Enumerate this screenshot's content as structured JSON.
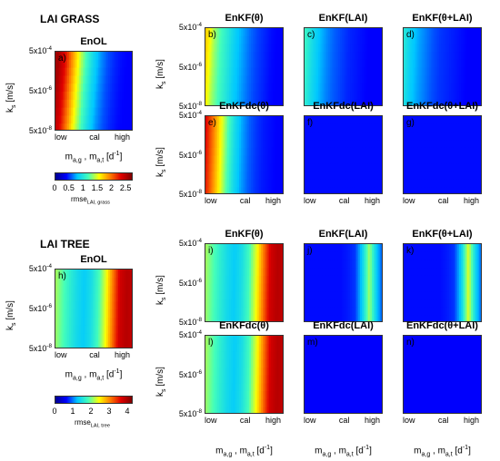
{
  "colormap_stops": [
    "#00008f",
    "#0000ff",
    "#00c8ff",
    "#45ffb9",
    "#ffff00",
    "#ff8000",
    "#e00000",
    "#800000"
  ],
  "sections": {
    "grass": "LAI GRASS",
    "tree": "LAI TREE"
  },
  "axes": {
    "y_label": "k",
    "y_label_sub": "s",
    "y_label_unit": " [m/s]",
    "y_ticks": [
      {
        "base": "5x10",
        "exp": "-4"
      },
      {
        "base": "5x10",
        "exp": "-6"
      },
      {
        "base": "5x10",
        "exp": "-8"
      }
    ],
    "x_ticks": [
      "low",
      "cal",
      "high"
    ],
    "x_label_main": "m",
    "x_label_sub1": "a,g",
    "x_label_mid": " , m",
    "x_label_sub2": "a,t",
    "x_label_unit": " [d",
    "x_label_unit_exp": "-1",
    "x_label_close": "]"
  },
  "colorbars": {
    "grass": {
      "ticks": [
        "0",
        "0.5",
        "1",
        "1.5",
        "2",
        "2.5"
      ],
      "label": "rmse",
      "label_sub": "LAI, grass"
    },
    "tree": {
      "ticks": [
        "0",
        "1",
        "2",
        "3",
        "4"
      ],
      "label": "rmse",
      "label_sub": "LAI, tree"
    }
  },
  "chart_data": [
    {
      "type": "heatmap",
      "panel": "a)",
      "title": "EnOL",
      "section": "LAI GRASS",
      "profile": [
        0.95,
        0.85,
        0.7,
        0.55,
        0.42,
        0.32,
        0.25,
        0.2,
        0.17,
        0.15,
        0.14,
        0.14
      ],
      "tilt": 0.08
    },
    {
      "type": "heatmap",
      "panel": "b)",
      "title": "EnKF(θ)",
      "section": "LAI GRASS",
      "profile": [
        0.62,
        0.5,
        0.42,
        0.36,
        0.3,
        0.26,
        0.22,
        0.19,
        0.17,
        0.15,
        0.14,
        0.14
      ],
      "tilt": 0.05
    },
    {
      "type": "heatmap",
      "panel": "c)",
      "title": "EnKF(LAI)",
      "section": "LAI GRASS",
      "profile": [
        0.4,
        0.33,
        0.28,
        0.24,
        0.21,
        0.19,
        0.17,
        0.16,
        0.15,
        0.14,
        0.14,
        0.14
      ],
      "tilt": 0.04
    },
    {
      "type": "heatmap",
      "panel": "d)",
      "title": "EnKF(θ+LAI)",
      "section": "LAI GRASS",
      "profile": [
        0.36,
        0.3,
        0.26,
        0.23,
        0.2,
        0.18,
        0.17,
        0.16,
        0.15,
        0.14,
        0.14,
        0.14
      ],
      "tilt": 0.04
    },
    {
      "type": "heatmap",
      "panel": "e)",
      "title": "EnKFdc(θ)",
      "section": "LAI GRASS",
      "profile": [
        0.85,
        0.72,
        0.58,
        0.44,
        0.33,
        0.26,
        0.21,
        0.18,
        0.16,
        0.15,
        0.14,
        0.14
      ],
      "tilt": 0.03
    },
    {
      "type": "heatmap",
      "panel": "f)",
      "title": "EnKFdc(LAI)",
      "section": "LAI GRASS",
      "profile": [
        0.15,
        0.15,
        0.15,
        0.15,
        0.15,
        0.15,
        0.15,
        0.15,
        0.15,
        0.15,
        0.15,
        0.15
      ],
      "tilt": 0.0
    },
    {
      "type": "heatmap",
      "panel": "g)",
      "title": "EnKFdc(θ+LAI)",
      "section": "LAI GRASS",
      "profile": [
        0.15,
        0.15,
        0.15,
        0.15,
        0.15,
        0.15,
        0.15,
        0.15,
        0.15,
        0.15,
        0.15,
        0.15
      ],
      "tilt": 0.0
    },
    {
      "type": "heatmap",
      "panel": "h)",
      "title": "EnOL",
      "section": "LAI TREE",
      "profile": [
        0.5,
        0.44,
        0.38,
        0.33,
        0.3,
        0.34,
        0.42,
        0.55,
        0.72,
        0.88,
        0.92,
        0.9
      ],
      "tilt": 0.02
    },
    {
      "type": "heatmap",
      "panel": "i)",
      "title": "EnKF(θ)",
      "section": "LAI TREE",
      "profile": [
        0.5,
        0.44,
        0.38,
        0.33,
        0.3,
        0.34,
        0.42,
        0.55,
        0.72,
        0.88,
        0.92,
        0.9
      ],
      "tilt": 0.02
    },
    {
      "type": "heatmap",
      "panel": "j)",
      "title": "EnKF(LAI)",
      "section": "LAI TREE",
      "profile": [
        0.15,
        0.15,
        0.15,
        0.15,
        0.15,
        0.15,
        0.16,
        0.18,
        0.3,
        0.5,
        0.3,
        0.18
      ],
      "tilt": 0.0
    },
    {
      "type": "heatmap",
      "panel": "k)",
      "title": "EnKF(θ+LAI)",
      "section": "LAI TREE",
      "profile": [
        0.15,
        0.15,
        0.15,
        0.15,
        0.15,
        0.15,
        0.16,
        0.18,
        0.3,
        0.55,
        0.32,
        0.18
      ],
      "tilt": 0.0
    },
    {
      "type": "heatmap",
      "panel": "l)",
      "title": "EnKFdc(θ)",
      "section": "LAI TREE",
      "profile": [
        0.5,
        0.44,
        0.38,
        0.33,
        0.3,
        0.34,
        0.42,
        0.55,
        0.72,
        0.88,
        0.92,
        0.9
      ],
      "tilt": 0.02
    },
    {
      "type": "heatmap",
      "panel": "m)",
      "title": "EnKFdc(LAI)",
      "section": "LAI TREE",
      "profile": [
        0.14,
        0.14,
        0.14,
        0.14,
        0.14,
        0.14,
        0.14,
        0.14,
        0.14,
        0.14,
        0.14,
        0.14
      ],
      "tilt": 0.0
    },
    {
      "type": "heatmap",
      "panel": "n)",
      "title": "EnKFdc(θ+LAI)",
      "section": "LAI TREE",
      "profile": [
        0.14,
        0.14,
        0.14,
        0.14,
        0.14,
        0.14,
        0.14,
        0.14,
        0.14,
        0.14,
        0.14,
        0.14
      ],
      "tilt": 0.0
    }
  ]
}
